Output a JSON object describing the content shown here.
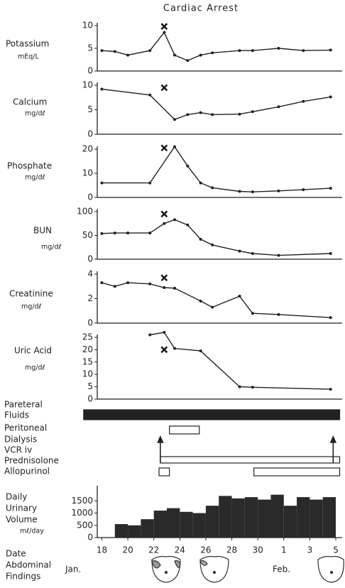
{
  "title": "Cardiac Arrest",
  "chart_data": [
    {
      "type": "line",
      "label": [
        "Potassium",
        "mEq/L"
      ],
      "color": "#222",
      "x": [
        0,
        1,
        2,
        3.7,
        4.8,
        5.6,
        6.6,
        7.6,
        8.5,
        10.6,
        11.6,
        13.6,
        15.5,
        17.6
      ],
      "values": [
        4.5,
        4.3,
        3.5,
        4.5,
        8.5,
        3.5,
        2.3,
        3.5,
        4,
        4.5,
        4.5,
        5,
        4.5,
        4.6
      ],
      "marker": {
        "x": 4.8,
        "y": 9.8
      },
      "ylim": [
        0,
        10
      ],
      "yticks": [
        0,
        5,
        10
      ]
    },
    {
      "type": "line",
      "label": [
        "Calcium",
        "mg/dℓ"
      ],
      "color": "#222",
      "x": [
        0,
        3.7,
        5.6,
        6.6,
        7.6,
        8.5,
        10.6,
        11.6,
        13.6,
        15.5,
        17.6
      ],
      "values": [
        9.2,
        8,
        3,
        4,
        4.4,
        4,
        4.1,
        4.6,
        5.6,
        6.7,
        7.6
      ],
      "marker": {
        "x": 4.8,
        "y": 9.5
      },
      "ylim": [
        0,
        10
      ],
      "yticks": [
        0,
        5,
        10
      ]
    },
    {
      "type": "line",
      "label": [
        "Phosphate",
        "mg/dℓ"
      ],
      "color": "#222",
      "x": [
        0,
        3.7,
        5.6,
        6.6,
        7.6,
        8.5,
        10.6,
        11.6,
        13.6,
        15.5,
        17.6
      ],
      "values": [
        6,
        6,
        21,
        13,
        6,
        4,
        2.5,
        2.3,
        2.7,
        3.2,
        3.8
      ],
      "marker": {
        "x": 4.8,
        "y": 20.5
      },
      "ylim": [
        0,
        20
      ],
      "yticks": [
        0,
        10,
        20
      ]
    },
    {
      "type": "line",
      "label": [
        "BUN",
        "mg/dℓ"
      ],
      "color": "#222",
      "x": [
        0,
        1,
        2,
        3.7,
        4.8,
        5.6,
        6.6,
        7.6,
        8.5,
        10.6,
        11.6,
        13.6,
        17.6
      ],
      "values": [
        54,
        55,
        55,
        55,
        75,
        83,
        72,
        42,
        30,
        17,
        12,
        8,
        12
      ],
      "marker": {
        "x": 4.8,
        "y": 95
      },
      "ylim": [
        0,
        100
      ],
      "yticks": [
        0,
        50,
        100
      ]
    },
    {
      "type": "line",
      "label": [
        "Creatinine",
        "mg/dℓ"
      ],
      "color": "#222",
      "x": [
        0,
        1,
        2,
        3.7,
        4.8,
        5.6,
        7.6,
        8.5,
        10.6,
        11.6,
        13.6,
        17.6
      ],
      "values": [
        3.3,
        3.0,
        3.3,
        3.2,
        2.9,
        2.85,
        1.8,
        1.3,
        2.2,
        0.8,
        0.7,
        0.45
      ],
      "marker": {
        "x": 4.8,
        "y": 3.7
      },
      "ylim": [
        0,
        4
      ],
      "yticks": [
        0,
        2,
        4
      ]
    },
    {
      "type": "line",
      "label": [
        "Uric Acid",
        "mg/dℓ"
      ],
      "color": "#222",
      "x": [
        3.7,
        4.8,
        5.6,
        7.6,
        10.6,
        11.6,
        17.6
      ],
      "values": [
        26,
        27,
        20.5,
        19.5,
        5,
        4.8,
        4
      ],
      "marker": {
        "x": 4.8,
        "y": 20
      },
      "ylim": [
        0,
        25
      ],
      "yticks": [
        0,
        5,
        10,
        15,
        20,
        25
      ]
    },
    {
      "type": "timeline",
      "color": "#222",
      "rows": [
        {
          "label": [
            "Pareteral",
            "Fluids"
          ],
          "style": "filled",
          "bars": [
            [
              -1.4,
              18.3
            ]
          ]
        },
        {
          "label": [
            "Peritoneal",
            "Dialysis"
          ],
          "style": "open",
          "bars": [
            [
              5.2,
              7.5
            ]
          ]
        },
        {
          "label": [
            "VCR iv"
          ],
          "style": "arrow",
          "arrows": [
            4.5,
            17.8
          ]
        },
        {
          "label": [
            "Prednisolone"
          ],
          "style": "open",
          "bars": [
            [
              4.5,
              18.3
            ]
          ]
        },
        {
          "label": [
            "Allopurinol"
          ],
          "style": "open",
          "bars": [
            [
              4.4,
              5.2
            ],
            [
              11.7,
              18.3
            ]
          ]
        }
      ]
    },
    {
      "type": "bar",
      "label": [
        "Daily",
        "Urinary",
        "Volume",
        "mℓ/day"
      ],
      "color": "#2a2a2a",
      "x": [
        1.5,
        2.5,
        3.5,
        4.5,
        5.5,
        6.5,
        7.5,
        8.5,
        9.5,
        10.5,
        11.5,
        12.5,
        13.5,
        14.5,
        15.5,
        16.5,
        17.5
      ],
      "values": [
        550,
        500,
        750,
        1100,
        1200,
        1050,
        1000,
        1300,
        1700,
        1600,
        1650,
        1550,
        1750,
        1300,
        1650,
        1550,
        1650
      ],
      "ylim": [
        0,
        2000
      ],
      "yticks": [
        0,
        500,
        1000,
        1500
      ],
      "xlim": [
        -1.5,
        18.6
      ],
      "xlabel": "Date",
      "xticks": [
        {
          "value": 0,
          "label": "18"
        },
        {
          "value": 2,
          "label": "20"
        },
        {
          "value": 4,
          "label": "22"
        },
        {
          "value": 6,
          "label": "24"
        },
        {
          "value": 8,
          "label": "26"
        },
        {
          "value": 10,
          "label": "28"
        },
        {
          "value": 12,
          "label": "30"
        },
        {
          "value": 14,
          "label": "1"
        },
        {
          "value": 16,
          "label": "3"
        },
        {
          "value": 18,
          "label": "5"
        }
      ]
    }
  ],
  "footer": {
    "findings_label": [
      "Abdominal",
      "Findings"
    ],
    "months": [
      "Jan.",
      "Feb."
    ]
  }
}
